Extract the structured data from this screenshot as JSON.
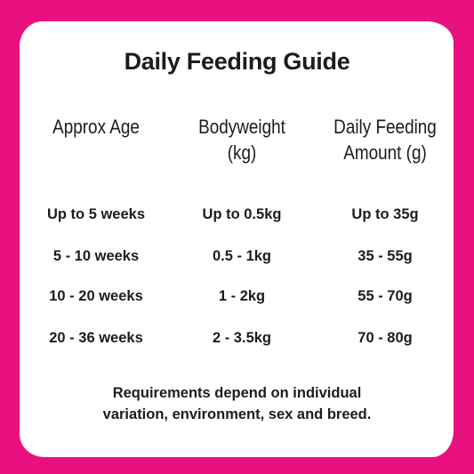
{
  "title": "Daily Feeding Guide",
  "colors": {
    "border": "#e8117f",
    "card": "#ffffff",
    "text": "#1c1c1c"
  },
  "headers": [
    [
      "Approx Age"
    ],
    [
      "Bodyweight",
      "(kg)"
    ],
    [
      "Daily Feeding",
      "Amount (g)"
    ]
  ],
  "rows": [
    [
      "Up to 5 weeks",
      "Up to 0.5kg",
      "Up to 35g"
    ],
    [
      "5 - 10 weeks",
      "0.5 - 1kg",
      "35 - 55g"
    ],
    [
      "10 - 20 weeks",
      "1 - 2kg",
      "55 - 70g"
    ],
    [
      "20 - 36 weeks",
      "2 - 3.5kg",
      "70 - 80g"
    ]
  ],
  "note": [
    "Requirements depend on individual",
    "variation, environment, sex and breed."
  ]
}
